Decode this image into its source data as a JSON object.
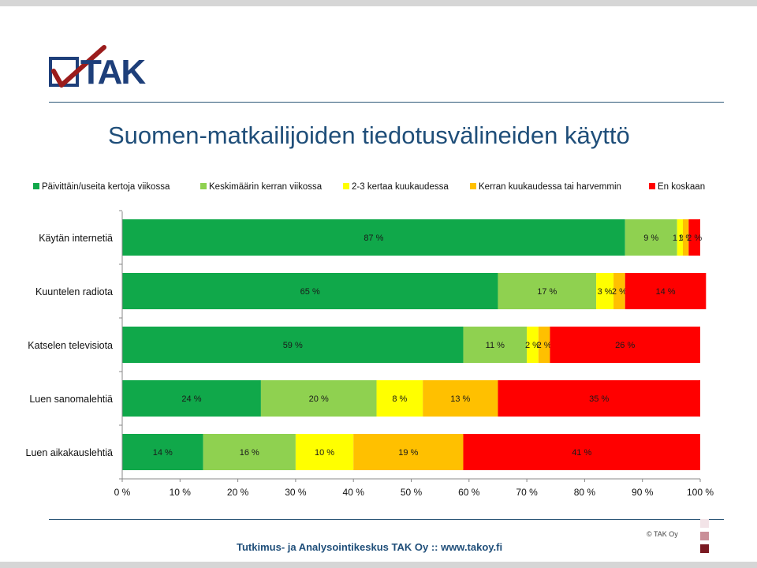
{
  "brand": {
    "logo_text": "TAK"
  },
  "slide": {
    "title": "Suomen-matkailijoiden tiedotusvälineiden käyttö",
    "footer": "Tutkimus- ja Analysointikeskus TAK Oy  ::  www.takoy.fi",
    "copyright": "© TAK Oy"
  },
  "chart_data": {
    "type": "bar",
    "orientation": "horizontal",
    "stacked": "percent",
    "categories": [
      "Käytän internetiä",
      "Kuuntelen radiota",
      "Katselen televisiota",
      "Luen sanomalehtiä",
      "Luen aikakauslehtiä"
    ],
    "series": [
      {
        "name": "Päivittäin/useita kertoja viikossa",
        "color": "#10a84a",
        "values": [
          87,
          65,
          59,
          24,
          14
        ],
        "labels": [
          "87 %",
          "65 %",
          "59 %",
          "24 %",
          "14 %"
        ]
      },
      {
        "name": "Keskimäärin kerran viikossa",
        "color": "#8fd150",
        "values": [
          9,
          17,
          11,
          20,
          16
        ],
        "labels": [
          "9 %",
          "17 %",
          "11 %",
          "20 %",
          "16 %"
        ]
      },
      {
        "name": "2-3 kertaa kuukaudessa",
        "color": "#ffff00",
        "values": [
          1,
          3,
          2,
          8,
          10
        ],
        "labels": [
          "1 %",
          "3 %",
          "2 %",
          "8 %",
          "10 %"
        ]
      },
      {
        "name": "Kerran kuukaudessa tai harvemmin",
        "color": "#ffc000",
        "values": [
          1,
          2,
          2,
          13,
          19
        ],
        "labels": [
          "1 %",
          "2 %",
          "2 %",
          "13 %",
          "19 %"
        ]
      },
      {
        "name": "En koskaan",
        "color": "#ff0000",
        "values": [
          2,
          14,
          26,
          35,
          41
        ],
        "labels": [
          "2 %",
          "14 %",
          "26 %",
          "35 %",
          "41 %"
        ]
      }
    ],
    "x_ticks": [
      "0 %",
      "10 %",
      "20 %",
      "30 %",
      "40 %",
      "50 %",
      "60 %",
      "70 %",
      "80 %",
      "90 %",
      "100 %"
    ],
    "xlim": [
      0,
      100
    ],
    "legend_position": "top",
    "grid": false
  }
}
